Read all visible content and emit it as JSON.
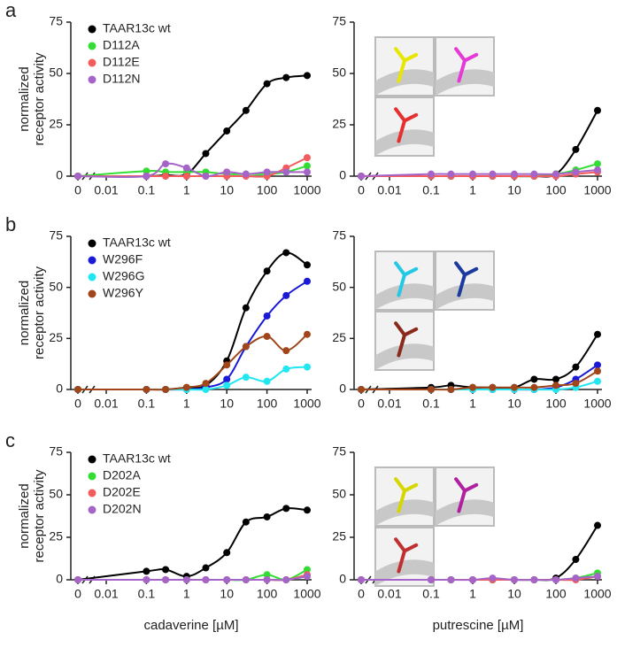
{
  "chart_data": [
    {
      "type": "line",
      "panel_label": "a",
      "ylabel": [
        "normalized",
        "receptor activity"
      ],
      "x": [
        0,
        0.1,
        0.3,
        1,
        3,
        10,
        30,
        100,
        300,
        1000
      ],
      "zero_tick": 0,
      "xscale": "log",
      "xlim": [
        0.01,
        1000
      ],
      "xticks": [
        0.01,
        0.1,
        1,
        10,
        100,
        1000
      ],
      "ylim": [
        0,
        75
      ],
      "yticks": [
        0,
        25,
        50,
        75
      ],
      "legend": "upper left",
      "series": [
        {
          "name": "TAAR13c wt",
          "color": "#000000",
          "values": [
            0,
            0,
            0.5,
            1,
            11,
            22,
            32,
            45,
            48,
            49
          ]
        },
        {
          "name": "D112A",
          "color": "#33dd33",
          "values": [
            0,
            2.5,
            2,
            2,
            2,
            1,
            1,
            1,
            2,
            5
          ]
        },
        {
          "name": "D112E",
          "color": "#f25c5c",
          "values": [
            0,
            0,
            0,
            0,
            0,
            0,
            0,
            0,
            4,
            9
          ]
        },
        {
          "name": "D112N",
          "color": "#a565c8",
          "values": [
            0,
            0,
            6,
            4,
            0,
            2,
            1,
            2,
            2,
            2
          ]
        }
      ]
    },
    {
      "type": "line",
      "x": [
        0,
        0.1,
        0.3,
        1,
        3,
        10,
        30,
        100,
        300,
        1000
      ],
      "zero_tick": 0,
      "xscale": "log",
      "xlim": [
        0.01,
        1000
      ],
      "xticks": [
        0.01,
        0.1,
        1,
        10,
        100,
        1000
      ],
      "ylim": [
        0,
        75
      ],
      "yticks": [
        0,
        25,
        50,
        75
      ],
      "series": [
        {
          "color": "#000000",
          "values": [
            0,
            0,
            0,
            0,
            0,
            0,
            0,
            1,
            13,
            32
          ]
        },
        {
          "color": "#33dd33",
          "values": [
            0,
            0,
            0,
            0,
            0,
            0,
            0,
            1,
            3,
            6
          ]
        },
        {
          "color": "#f25c5c",
          "values": [
            0,
            0,
            0,
            0,
            0,
            0,
            0,
            0,
            1,
            2
          ]
        },
        {
          "color": "#a565c8",
          "values": [
            0,
            1,
            1,
            1,
            1,
            1,
            1,
            1,
            2,
            3
          ]
        }
      ]
    },
    {
      "type": "line",
      "panel_label": "b",
      "ylabel": [
        "normalized",
        "receptor activity"
      ],
      "x": [
        0,
        0.1,
        0.3,
        1,
        3,
        10,
        30,
        100,
        300,
        1000
      ],
      "zero_tick": 0,
      "xscale": "log",
      "xlim": [
        0.01,
        1000
      ],
      "xticks": [
        0.01,
        0.1,
        1,
        10,
        100,
        1000
      ],
      "ylim": [
        0,
        75
      ],
      "yticks": [
        0,
        25,
        50,
        75
      ],
      "legend": "upper left",
      "series": [
        {
          "name": "TAAR13c wt",
          "color": "#000000",
          "values": [
            0,
            0,
            0,
            1,
            2,
            14,
            40,
            58,
            67,
            61
          ]
        },
        {
          "name": "W296F",
          "color": "#1a1ad6",
          "values": [
            0,
            0,
            0,
            0,
            1,
            5,
            21,
            36,
            46,
            53
          ]
        },
        {
          "name": "W296G",
          "color": "#22e6f0",
          "values": [
            0,
            0,
            0,
            0,
            0,
            2,
            6,
            4,
            10,
            11
          ]
        },
        {
          "name": "W296Y",
          "color": "#a0461a",
          "values": [
            0,
            0,
            0,
            1,
            3,
            12,
            21,
            26,
            19,
            27
          ]
        }
      ]
    },
    {
      "type": "line",
      "x": [
        0,
        0.1,
        0.3,
        1,
        3,
        10,
        30,
        100,
        300,
        1000
      ],
      "zero_tick": 0,
      "xscale": "log",
      "xlim": [
        0.01,
        1000
      ],
      "xticks": [
        0.01,
        0.1,
        1,
        10,
        100,
        1000
      ],
      "ylim": [
        0,
        75
      ],
      "yticks": [
        0,
        25,
        50,
        75
      ],
      "series": [
        {
          "color": "#000000",
          "values": [
            0,
            1,
            2,
            1,
            1,
            1,
            5,
            5,
            11,
            27
          ]
        },
        {
          "color": "#1a1ad6",
          "values": [
            0,
            0,
            0,
            0,
            0,
            0,
            0,
            1,
            5,
            12
          ]
        },
        {
          "color": "#22e6f0",
          "values": [
            0,
            0,
            0,
            0,
            0,
            0,
            0,
            0,
            1,
            4
          ]
        },
        {
          "color": "#a0461a",
          "values": [
            0,
            0,
            0,
            1,
            1,
            1,
            1,
            2,
            3,
            9
          ]
        }
      ]
    },
    {
      "type": "line",
      "panel_label": "c",
      "ylabel": [
        "normalized",
        "receptor activity"
      ],
      "xlabel": "cadaverine [µM]",
      "x": [
        0,
        0.1,
        0.3,
        1,
        3,
        10,
        30,
        100,
        300,
        1000
      ],
      "zero_tick": 0,
      "xscale": "log",
      "xlim": [
        0.01,
        1000
      ],
      "xticks": [
        0.01,
        0.1,
        1,
        10,
        100,
        1000
      ],
      "ylim": [
        0,
        75
      ],
      "yticks": [
        0,
        25,
        50,
        75
      ],
      "legend": "upper left",
      "series": [
        {
          "name": "TAAR13c wt",
          "color": "#000000",
          "values": [
            0,
            5,
            6,
            2,
            7,
            16,
            34,
            37,
            42,
            41
          ]
        },
        {
          "name": "D202A",
          "color": "#33dd33",
          "values": [
            0,
            0,
            0,
            0,
            0,
            0,
            0,
            3,
            0,
            6
          ]
        },
        {
          "name": "D202E",
          "color": "#f25c5c",
          "values": [
            0,
            0,
            0,
            0,
            0,
            0,
            0,
            0,
            0,
            3
          ]
        },
        {
          "name": "D202N",
          "color": "#a565c8",
          "values": [
            0,
            0,
            0,
            0,
            0,
            0,
            0,
            0,
            0,
            2
          ]
        }
      ]
    },
    {
      "type": "line",
      "xlabel": "putrescine [µM]",
      "x": [
        0,
        0.1,
        0.3,
        1,
        3,
        10,
        30,
        100,
        300,
        1000
      ],
      "zero_tick": 0,
      "xscale": "log",
      "xlim": [
        0.01,
        1000
      ],
      "xticks": [
        0.01,
        0.1,
        1,
        10,
        100,
        1000
      ],
      "ylim": [
        0,
        75
      ],
      "yticks": [
        0,
        25,
        50,
        75
      ],
      "series": [
        {
          "color": "#000000",
          "values": [
            0,
            0,
            0,
            0,
            0,
            0,
            0,
            1,
            12,
            32
          ]
        },
        {
          "color": "#33dd33",
          "values": [
            0,
            0,
            0,
            0,
            0,
            0,
            0,
            0,
            1,
            4
          ]
        },
        {
          "color": "#f25c5c",
          "values": [
            0,
            0,
            0,
            0,
            0,
            0,
            0,
            0,
            0,
            2
          ]
        },
        {
          "color": "#a565c8",
          "values": [
            0,
            0,
            0,
            0,
            1,
            0,
            0,
            0,
            1,
            2
          ]
        }
      ]
    }
  ]
}
